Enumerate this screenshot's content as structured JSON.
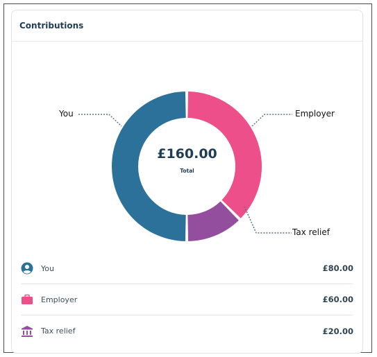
{
  "card": {
    "title": "Contributions"
  },
  "chart_data": {
    "type": "pie",
    "categories": [
      "You",
      "Employer",
      "Tax relief"
    ],
    "values": [
      80,
      60,
      20
    ],
    "colors": [
      "#2c7199",
      "#ec4f8a",
      "#944e9e"
    ],
    "center_value": "£160.00",
    "center_label": "Total"
  },
  "callouts": {
    "you": "You",
    "employer": "Employer",
    "tax_relief": "Tax relief"
  },
  "legend": [
    {
      "label": "You",
      "value": "£80.00",
      "icon": "user-icon",
      "color": "#2c7199"
    },
    {
      "label": "Employer",
      "value": "£60.00",
      "icon": "briefcase-icon",
      "color": "#ec4f8a"
    },
    {
      "label": "Tax relief",
      "value": "£20.00",
      "icon": "bank-icon",
      "color": "#944e9e"
    }
  ]
}
